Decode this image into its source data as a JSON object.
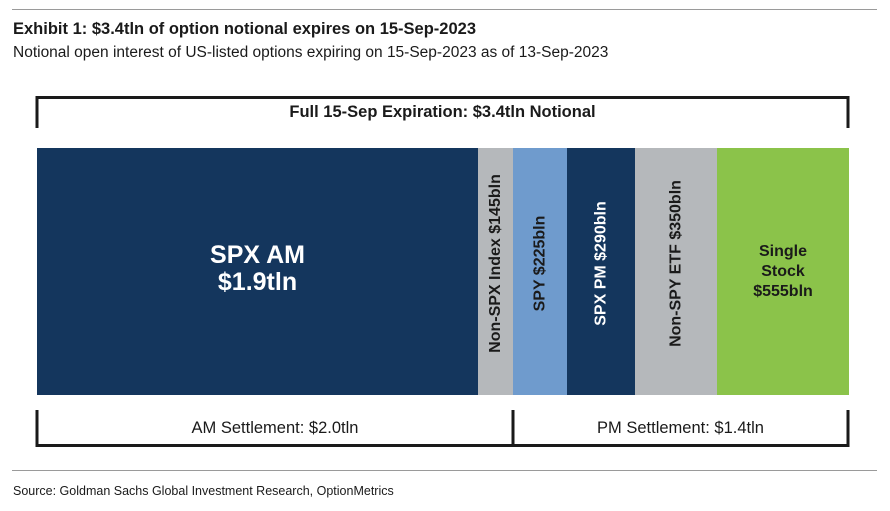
{
  "header": {
    "title": "Exhibit 1: $3.4tln of option notional expires on 15-Sep-2023",
    "subtitle": "Notional open interest of US-listed options expiring on 15-Sep-2023 as of 13-Sep-2023"
  },
  "footer": {
    "source": "Source: Goldman Sachs Global Investment Research, OptionMetrics"
  },
  "chart_data": {
    "type": "bar",
    "orientation": "horizontal-stacked",
    "unit": "bln",
    "segments": [
      {
        "lines": [
          "SPX AM",
          "$1.9tln"
        ],
        "value": 1900,
        "color": "#14365d",
        "text_color": "#ffffff",
        "rotated": false
      },
      {
        "lines": [
          "Non-SPX Index $145bln"
        ],
        "value": 145,
        "color": "#b5b8bb",
        "text_color": "#1a1a1a",
        "rotated": true
      },
      {
        "lines": [
          "SPY $225bln"
        ],
        "value": 225,
        "color": "#6f9bcd",
        "text_color": "#1a1a1a",
        "rotated": true
      },
      {
        "lines": [
          "SPX PM $290bln"
        ],
        "value": 290,
        "color": "#14365d",
        "text_color": "#ffffff",
        "rotated": true
      },
      {
        "lines": [
          "Non-SPY ETF $350bln"
        ],
        "value": 350,
        "color": "#b5b8bb",
        "text_color": "#1a1a1a",
        "rotated": true
      },
      {
        "lines": [
          "Single",
          "Stock",
          "$555bln"
        ],
        "value": 555,
        "color": "#8bc34a",
        "text_color": "#1a1a1a",
        "rotated": false
      }
    ],
    "brackets": {
      "top": {
        "label": "Full 15-Sep Expiration: $3.4tln Notional",
        "from": 0,
        "to": 6
      },
      "bottom": [
        {
          "label": "AM Settlement: $2.0tln",
          "from": 0,
          "to": 2
        },
        {
          "label": "PM Settlement: $1.4tln",
          "from": 2,
          "to": 6
        }
      ]
    }
  }
}
